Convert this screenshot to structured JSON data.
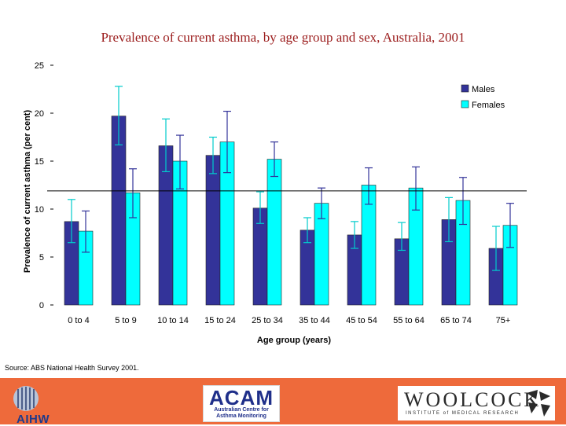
{
  "chart_data": {
    "type": "bar",
    "title": "Prevalence of current asthma, by age group and sex, Australia, 2001",
    "xlabel": "Age group (years)",
    "ylabel": "Prevalence of current asthma (per cent)",
    "ylim": [
      0,
      25
    ],
    "yticks": [
      0,
      5,
      10,
      15,
      20,
      25
    ],
    "categories": [
      "0 to 4",
      "5 to 9",
      "10 to 14",
      "15 to 24",
      "25 to 34",
      "35 to 44",
      "45 to 54",
      "55 to 64",
      "65 to 74",
      "75+"
    ],
    "series": [
      {
        "name": "Males",
        "color": "#333399",
        "values": [
          8.7,
          19.7,
          16.6,
          15.6,
          10.1,
          7.8,
          7.3,
          6.9,
          8.9,
          5.9
        ],
        "error_low": [
          6.5,
          16.7,
          13.9,
          13.7,
          8.5,
          6.5,
          5.9,
          5.7,
          6.6,
          3.6
        ],
        "error_high": [
          11.0,
          22.8,
          19.4,
          17.5,
          11.8,
          9.1,
          8.7,
          8.6,
          11.2,
          8.2
        ]
      },
      {
        "name": "Females",
        "color": "#00ffff",
        "values": [
          7.7,
          11.7,
          15.0,
          17.0,
          15.2,
          10.6,
          12.5,
          12.2,
          10.9,
          8.3
        ],
        "error_low": [
          5.5,
          9.1,
          12.1,
          13.8,
          13.4,
          9.0,
          10.5,
          9.9,
          8.4,
          6.0
        ],
        "error_high": [
          9.8,
          14.2,
          17.7,
          20.2,
          17.0,
          12.2,
          14.3,
          14.4,
          13.3,
          10.6
        ]
      }
    ],
    "reference_line": 11.9,
    "legend_position": "top-right"
  },
  "source": "Source: ABS National Health Survey 2001.",
  "footer": {
    "aihw_label": "AIHW",
    "acam_label": "ACAM",
    "acam_sub1": "Australian Centre for",
    "acam_sub2": "Asthma Monitoring",
    "woolcock_label": "WOOLCOCK",
    "woolcock_sub": "INSTITUTE of MEDICAL RESEARCH"
  }
}
